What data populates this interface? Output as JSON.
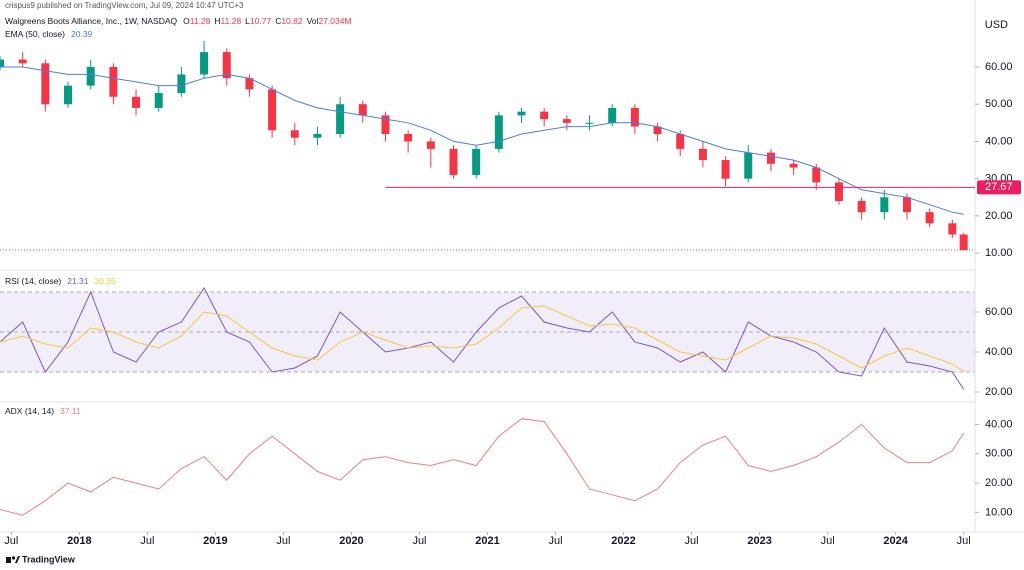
{
  "header": {
    "published": "crispus9 published on TradingView.com, Jul 09, 2024 10:47 UTC+3",
    "currency": "USD"
  },
  "chart_data": [
    {
      "type": "candlestick",
      "title": "Walgreens Boots Alliance, Inc., 1W, NASDAQ",
      "last_bar": [
        {
          "label": "O",
          "value": 11.28
        },
        {
          "label": "H",
          "value": 11.28
        },
        {
          "label": "L",
          "value": 10.77
        },
        {
          "label": "C",
          "value": 10.82
        }
      ],
      "volume": {
        "label": "Vol",
        "value": 27034000,
        "value_label": "27.034M"
      },
      "x": [
        "2017-06",
        "2017-08",
        "2017-10",
        "2017-12",
        "2018-02",
        "2018-04",
        "2018-06",
        "2018-08",
        "2018-10",
        "2018-12",
        "2019-02",
        "2019-04",
        "2019-06",
        "2019-08",
        "2019-10",
        "2019-12",
        "2020-02",
        "2020-04",
        "2020-06",
        "2020-08",
        "2020-10",
        "2020-12",
        "2021-02",
        "2021-04",
        "2021-06",
        "2021-08",
        "2021-10",
        "2021-12",
        "2022-02",
        "2022-04",
        "2022-06",
        "2022-08",
        "2022-10",
        "2022-12",
        "2023-02",
        "2023-04",
        "2023-06",
        "2023-08",
        "2023-10",
        "2023-12",
        "2024-02",
        "2024-04",
        "2024-06",
        "2024-07"
      ],
      "open": [
        60,
        62,
        61,
        50,
        55,
        60,
        52,
        49,
        53,
        58,
        64,
        57,
        54,
        43,
        41,
        42,
        50,
        47,
        42,
        40,
        38,
        31,
        38,
        47,
        48,
        46,
        45,
        45,
        49,
        44,
        42,
        38,
        35,
        30,
        37,
        34,
        33,
        29,
        24,
        21,
        25,
        21,
        18,
        15
      ],
      "high": [
        63,
        64,
        62,
        56,
        62,
        61,
        54,
        55,
        60,
        67,
        65,
        58,
        55,
        45,
        44,
        52,
        51,
        48,
        43,
        41,
        39,
        39,
        48,
        49,
        49,
        47,
        47,
        50,
        50,
        45,
        43,
        40,
        36,
        39,
        38,
        35,
        34,
        30,
        25,
        27,
        26,
        22,
        19,
        15.5
      ],
      "low": [
        59,
        60,
        48,
        49,
        54,
        50,
        47,
        48,
        52,
        57,
        55,
        52,
        41,
        39,
        39,
        41,
        45,
        40,
        37,
        33,
        30,
        30,
        37,
        45,
        44,
        43,
        43,
        44,
        42,
        40,
        36,
        33,
        28,
        29,
        32,
        31,
        27,
        23,
        19,
        19,
        19,
        17,
        14,
        10.77
      ],
      "close": [
        62,
        61,
        50,
        55,
        60,
        52,
        49,
        53,
        58,
        64,
        57,
        54,
        43,
        41,
        42,
        50,
        47,
        42,
        40,
        38,
        31,
        38,
        47,
        48,
        46,
        45,
        45,
        49,
        44,
        42,
        38,
        35,
        30,
        37,
        34,
        33,
        29,
        24,
        21,
        25,
        21,
        18,
        15,
        10.82
      ],
      "up_color": "#089981",
      "down_color": "#f23645",
      "series": [
        {
          "name": "EMA (50, close)",
          "color": "#4a7cf5",
          "values": [
            60,
            60,
            59,
            58,
            58,
            57,
            56,
            55,
            55,
            57,
            58,
            57,
            54,
            51,
            49,
            48,
            47,
            46,
            45,
            43,
            40,
            39,
            40,
            42,
            43,
            44,
            44,
            45,
            45,
            44,
            42,
            40,
            38,
            37,
            36,
            35,
            33,
            30,
            27,
            26,
            25,
            23,
            21,
            20.39
          ]
        }
      ],
      "hlines": [
        {
          "value": 27.67,
          "color": "#e91e63",
          "start": "2020-04"
        }
      ],
      "ylim": [
        6,
        78
      ],
      "yticks": [
        {
          "value": 10,
          "label": "10.00"
        },
        {
          "value": 20,
          "label": "20.00"
        },
        {
          "value": 30,
          "label": "30.00"
        },
        {
          "value": 40,
          "label": "40.00"
        },
        {
          "value": 50,
          "label": "50.00"
        },
        {
          "value": 60,
          "label": "60.00"
        }
      ]
    },
    {
      "type": "line",
      "title": "RSI (14, close)",
      "x": [
        "2017-06",
        "2017-08",
        "2017-10",
        "2017-12",
        "2018-02",
        "2018-04",
        "2018-06",
        "2018-08",
        "2018-10",
        "2018-12",
        "2019-02",
        "2019-04",
        "2019-06",
        "2019-08",
        "2019-10",
        "2019-12",
        "2020-02",
        "2020-04",
        "2020-06",
        "2020-08",
        "2020-10",
        "2020-12",
        "2021-02",
        "2021-04",
        "2021-06",
        "2021-08",
        "2021-10",
        "2021-12",
        "2022-02",
        "2022-04",
        "2022-06",
        "2022-08",
        "2022-10",
        "2022-12",
        "2023-02",
        "2023-04",
        "2023-06",
        "2023-08",
        "2023-10",
        "2023-12",
        "2024-02",
        "2024-04",
        "2024-06",
        "2024-07"
      ],
      "series": [
        {
          "color": "#7e57c2",
          "values": [
            45,
            55,
            30,
            45,
            70,
            40,
            35,
            50,
            55,
            72,
            50,
            45,
            30,
            32,
            38,
            60,
            50,
            40,
            42,
            45,
            35,
            50,
            62,
            68,
            55,
            52,
            50,
            60,
            45,
            42,
            35,
            40,
            30,
            55,
            48,
            45,
            40,
            30,
            28,
            52,
            35,
            33,
            30,
            21.31
          ]
        },
        {
          "color": "#f5c842",
          "values": [
            45,
            48,
            44,
            42,
            52,
            50,
            45,
            42,
            48,
            60,
            58,
            50,
            42,
            38,
            36,
            45,
            50,
            46,
            42,
            43,
            42,
            44,
            52,
            62,
            63,
            58,
            53,
            54,
            52,
            46,
            40,
            38,
            36,
            42,
            48,
            47,
            44,
            38,
            32,
            38,
            42,
            38,
            34,
            30.35
          ]
        }
      ],
      "levels": [
        30,
        50,
        70
      ],
      "band_color": "#7e57c2",
      "ylim": [
        16,
        80
      ],
      "yticks": [
        {
          "value": 20,
          "label": "20.00"
        },
        {
          "value": 40,
          "label": "40.00"
        },
        {
          "value": 60,
          "label": "60.00"
        }
      ]
    },
    {
      "type": "line",
      "title": "ADX (14, 14)",
      "x": [
        "2017-06",
        "2017-08",
        "2017-10",
        "2017-12",
        "2018-02",
        "2018-04",
        "2018-06",
        "2018-08",
        "2018-10",
        "2018-12",
        "2019-02",
        "2019-04",
        "2019-06",
        "2019-08",
        "2019-10",
        "2019-12",
        "2020-02",
        "2020-04",
        "2020-06",
        "2020-08",
        "2020-10",
        "2020-12",
        "2021-02",
        "2021-04",
        "2021-06",
        "2021-08",
        "2021-10",
        "2021-12",
        "2022-02",
        "2022-04",
        "2022-06",
        "2022-08",
        "2022-10",
        "2022-12",
        "2023-02",
        "2023-04",
        "2023-06",
        "2023-08",
        "2023-10",
        "2023-12",
        "2024-02",
        "2024-04",
        "2024-06",
        "2024-07"
      ],
      "series": [
        {
          "color": "#f77c80",
          "values": [
            11,
            9,
            14,
            20,
            17,
            22,
            20,
            18,
            25,
            29,
            21,
            30,
            36,
            30,
            24,
            21,
            28,
            29,
            27,
            26,
            28,
            26,
            36,
            42,
            41,
            30,
            18,
            16,
            14,
            18,
            27,
            33,
            36,
            26,
            24,
            26,
            29,
            34,
            40,
            32,
            27,
            27,
            31,
            37.11
          ]
        }
      ],
      "ylim": [
        4,
        47
      ],
      "yticks": [
        {
          "value": 10,
          "label": "10.00"
        },
        {
          "value": 20,
          "label": "20.00"
        },
        {
          "value": 30,
          "label": "30.00"
        },
        {
          "value": 40,
          "label": "40.00"
        }
      ],
      "xlim": [
        "2017-06",
        "2024-08"
      ],
      "xticks": [
        {
          "value": "2017-07",
          "label": "Jul"
        },
        {
          "value": "2018-01",
          "label": "2018"
        },
        {
          "value": "2018-07",
          "label": "Jul"
        },
        {
          "value": "2019-01",
          "label": "2019"
        },
        {
          "value": "2019-07",
          "label": "Jul"
        },
        {
          "value": "2020-01",
          "label": "2020"
        },
        {
          "value": "2020-07",
          "label": "Jul"
        },
        {
          "value": "2021-01",
          "label": "2021"
        },
        {
          "value": "2021-07",
          "label": "Jul"
        },
        {
          "value": "2022-01",
          "label": "2022"
        },
        {
          "value": "2022-07",
          "label": "Jul"
        },
        {
          "value": "2023-01",
          "label": "2023"
        },
        {
          "value": "2023-07",
          "label": "Jul"
        },
        {
          "value": "2024-01",
          "label": "2024"
        },
        {
          "value": "2024-07",
          "label": "Jul"
        }
      ]
    }
  ],
  "footer": {
    "brand": "TradingView"
  }
}
